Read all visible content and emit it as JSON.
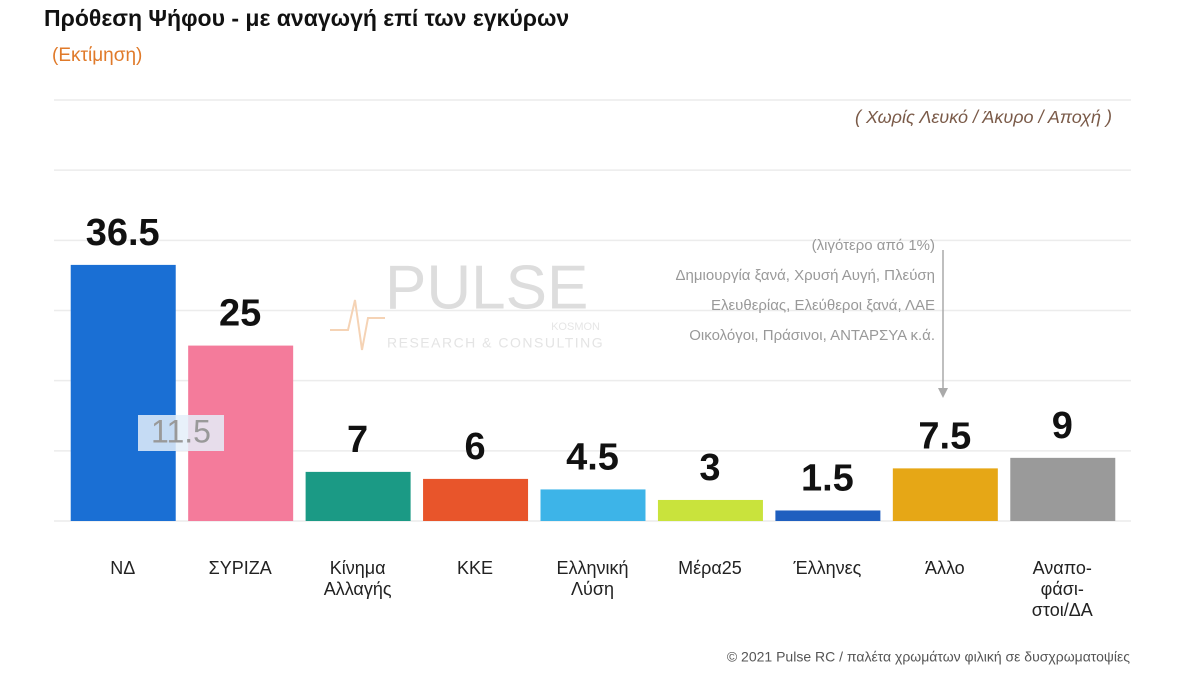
{
  "chart_data": {
    "type": "bar",
    "title": "Πρόθεση Ψήφου - με αναγωγή επί των εγκύρων",
    "subtitle": "(Εκτίμηση)",
    "note_top": "( Χωρίς Λευκό / Άκυρο / Αποχή )",
    "categories": [
      "ΝΔ",
      "ΣΥΡΙΖΑ",
      "Κίνημα\nΑλλαγής",
      "ΚΚΕ",
      "Ελληνική\nΛύση",
      "Μέρα25",
      "Έλληνες",
      "Άλλο",
      "Αναπο-\nφάσι-\nστοι/ΔΑ"
    ],
    "values": [
      36.5,
      25,
      7,
      6,
      4.5,
      3,
      1.5,
      7.5,
      9
    ],
    "colors": [
      "#1a6fd4",
      "#f47b9b",
      "#1b9a85",
      "#e8552b",
      "#3db4e8",
      "#c9e33c",
      "#1f5fbf",
      "#e6a716",
      "#9a9a9a"
    ],
    "ylim": [
      0,
      60
    ],
    "yticks": [
      0,
      10,
      20,
      30,
      40,
      50,
      60
    ],
    "grid": true,
    "gap_annotation": "11.5",
    "other_note": [
      "(λιγότερο από 1%)",
      "Δημιουργία ξανά, Χρυσή Αυγή, Πλεύση",
      "Ελευθερίας, Ελεύθεροι ξανά, ΛΑΕ",
      "Οικολόγοι, Πράσινοι, ΑΝΤΑΡΣΥΑ  κ.ά."
    ],
    "watermark": [
      "PULSE",
      "KOSMON",
      "RESEARCH & CONSULTING"
    ],
    "footer": "© 2021 Pulse RC  /  παλέτα χρωμάτων φιλική σε δυσχρωματοψίες"
  }
}
